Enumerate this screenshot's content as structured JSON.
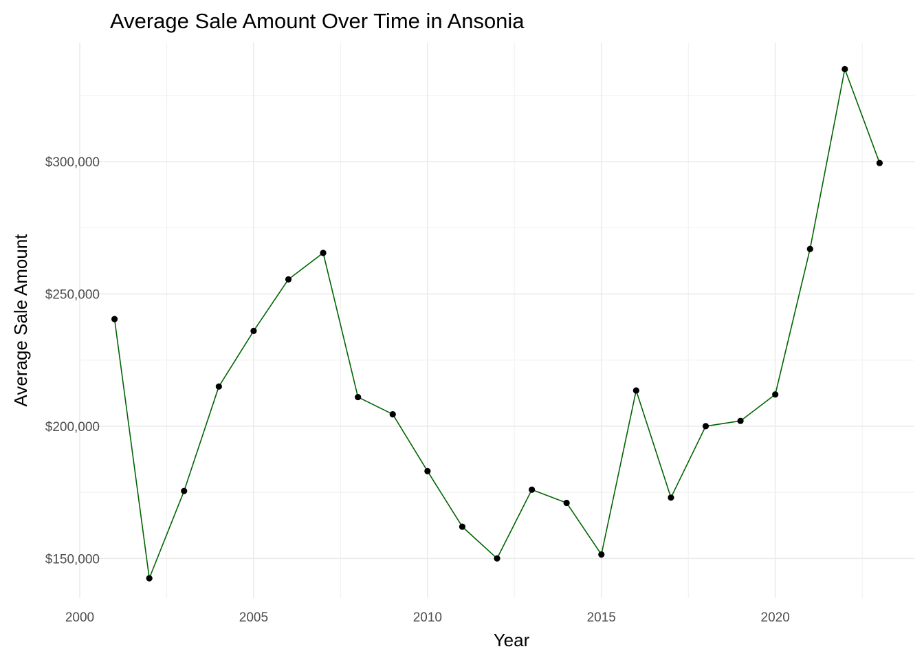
{
  "chart_data": {
    "type": "line",
    "title": "Average Sale Amount Over Time in Ansonia",
    "xlabel": "Year",
    "ylabel": "Average Sale Amount",
    "x": [
      2001,
      2002,
      2003,
      2004,
      2005,
      2006,
      2007,
      2008,
      2009,
      2010,
      2011,
      2012,
      2013,
      2014,
      2015,
      2016,
      2017,
      2018,
      2019,
      2020,
      2021,
      2022,
      2023
    ],
    "series": [
      {
        "values": [
          240500,
          142500,
          175500,
          215000,
          236000,
          255500,
          265500,
          211000,
          204500,
          183000,
          162000,
          150000,
          176000,
          171000,
          151500,
          213500,
          173000,
          200000,
          202000,
          212000,
          267000,
          335000,
          299500
        ]
      }
    ],
    "xlim": [
      2000,
      2024
    ],
    "ylim": [
      135000,
      345000
    ],
    "x_ticks": [
      2000,
      2005,
      2010,
      2015,
      2020
    ],
    "x_tick_labels": [
      "2000",
      "2005",
      "2010",
      "2015",
      "2020"
    ],
    "y_ticks": [
      150000,
      200000,
      250000,
      300000
    ],
    "y_tick_labels": [
      "$150,000",
      "$200,000",
      "$250,000",
      "$300,000"
    ],
    "grid": true,
    "legend": "none",
    "colors": {
      "line": "#006400",
      "point": "#000000",
      "grid_major": "#ebebeb",
      "grid_minor": "#f2f2f2"
    }
  }
}
